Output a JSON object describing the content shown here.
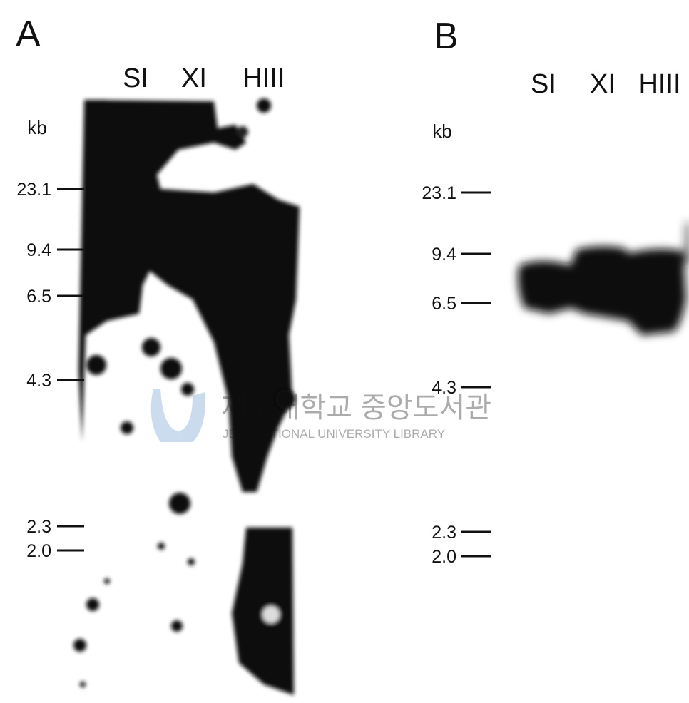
{
  "panels": [
    {
      "label": "A",
      "lanes": [
        "SI",
        "XI",
        "HIII"
      ],
      "unit": "kb",
      "markers": [
        "23.1",
        "9.4",
        "6.5",
        "4.3",
        "2.3",
        "2.0"
      ]
    },
    {
      "label": "B",
      "lanes": [
        "SI",
        "XI",
        "HIII"
      ],
      "unit": "kb",
      "markers": [
        "23.1",
        "9.4",
        "6.5",
        "4.3",
        "2.3",
        "2.0"
      ]
    }
  ],
  "watermark": {
    "title": "제주대학교 중앙도서관",
    "subtitle": "JEJU NATIONAL UNIVERSITY LIBRARY"
  }
}
